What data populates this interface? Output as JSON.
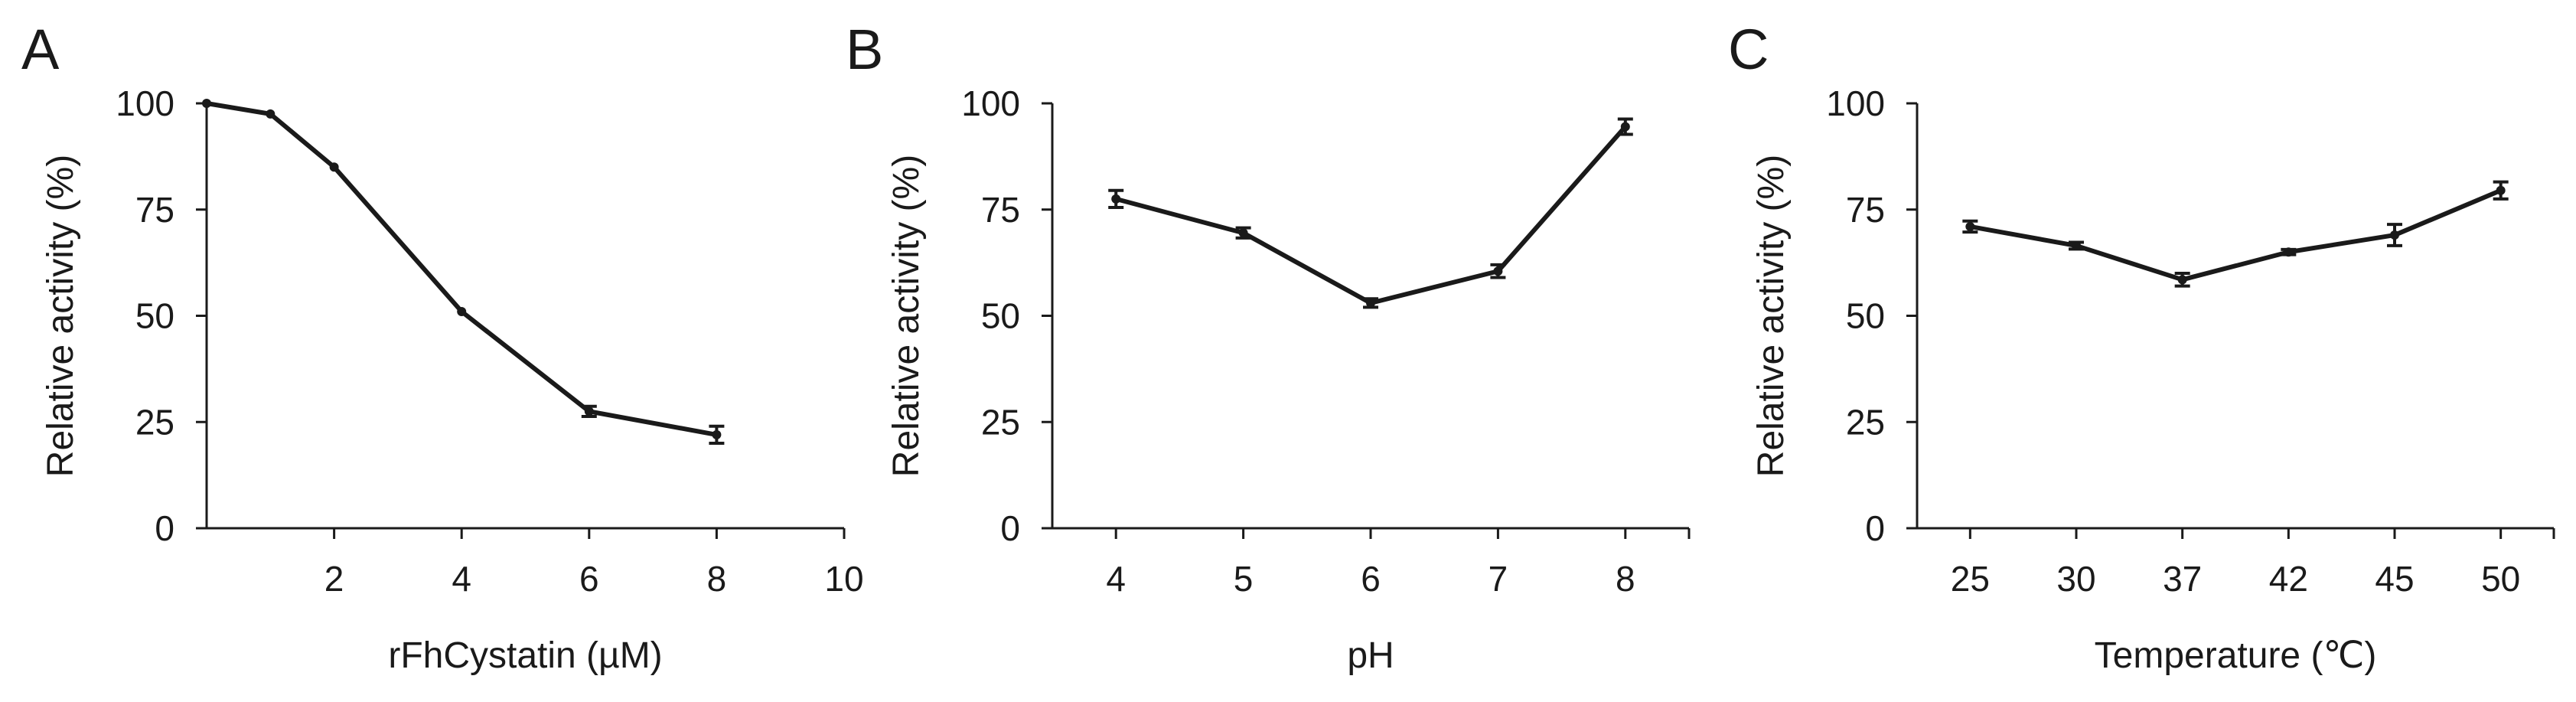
{
  "chart_data": [
    {
      "type": "line",
      "panel": "A",
      "xlabel": "rFhCystatin (µM)",
      "ylabel": "Relative activity (%)",
      "x_scale": "linear",
      "xlim": [
        0,
        10
      ],
      "ylim": [
        0,
        100
      ],
      "x_ticks": [
        "2",
        "4",
        "6",
        "8",
        "10"
      ],
      "y_ticks": [
        "0",
        "25",
        "50",
        "75",
        "100"
      ],
      "x": [
        0,
        1,
        2,
        4,
        6,
        8
      ],
      "series": [
        {
          "values": [
            100,
            97.5,
            85,
            51,
            27.5,
            22
          ],
          "errors": [
            0,
            0,
            0,
            0,
            1.2,
            2.0
          ]
        }
      ]
    },
    {
      "type": "line",
      "panel": "B",
      "xlabel": "pH",
      "ylabel": "Relative activity (%)",
      "x_scale": "category",
      "ylim": [
        0,
        100
      ],
      "categories": [
        "4",
        "5",
        "6",
        "7",
        "8"
      ],
      "y_ticks": [
        "0",
        "25",
        "50",
        "75",
        "100"
      ],
      "series": [
        {
          "values": [
            77.5,
            69.5,
            53,
            60.5,
            94.5
          ],
          "errors": [
            2.0,
            1.2,
            1.0,
            1.5,
            1.8
          ]
        }
      ]
    },
    {
      "type": "line",
      "panel": "C",
      "xlabel": "Temperature (℃)",
      "ylabel": "Relative activity (%)",
      "x_scale": "category",
      "ylim": [
        0,
        100
      ],
      "categories": [
        "25",
        "30",
        "37",
        "42",
        "45",
        "50"
      ],
      "y_ticks": [
        "0",
        "25",
        "50",
        "75",
        "100"
      ],
      "series": [
        {
          "values": [
            71,
            66.5,
            58.5,
            65,
            69,
            79.5
          ],
          "errors": [
            1.3,
            0.8,
            1.5,
            0.6,
            2.5,
            2.0
          ]
        }
      ]
    }
  ]
}
